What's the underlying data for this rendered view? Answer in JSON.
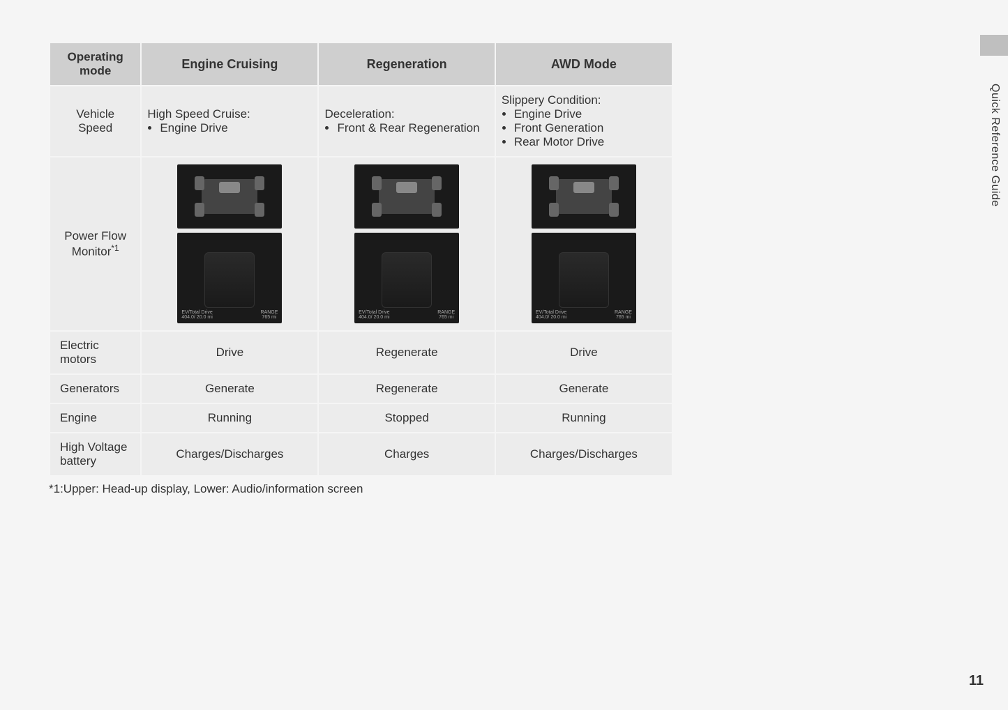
{
  "side_label": "Quick Reference Guide",
  "page_number": "11",
  "footnote": "*1:Upper: Head-up display, Lower: Audio/information screen",
  "headers": {
    "operating_mode": "Operating\nmode",
    "col1": "Engine Cruising",
    "col2": "Regeneration",
    "col3": "AWD Mode"
  },
  "rows": {
    "vehicle_speed": {
      "label": "Vehicle\nSpeed",
      "col1_title": "High Speed Cruise:",
      "col1_items": [
        "Engine Drive"
      ],
      "col2_title": "Deceleration:",
      "col2_items": [
        "Front & Rear Regeneration"
      ],
      "col3_title": "Slippery Condition:",
      "col3_items": [
        "Engine Drive",
        "Front Generation",
        "Rear Motor Drive"
      ]
    },
    "power_flow": {
      "label": "Power Flow\nMonitor",
      "label_sup": "*1",
      "readout_left_label": "EV/Total Drive",
      "readout_left_value": "404.0/ 20.0 mi",
      "readout_right_label": "RANGE",
      "readout_right_value": "765 mi"
    },
    "electric_motors": {
      "label": "Electric motors",
      "col1": "Drive",
      "col2": "Regenerate",
      "col3": "Drive"
    },
    "generators": {
      "label": "Generators",
      "col1": "Generate",
      "col2": "Regenerate",
      "col3": "Generate"
    },
    "engine": {
      "label": "Engine",
      "col1": "Running",
      "col2": "Stopped",
      "col3": "Running"
    },
    "battery": {
      "label": "High Voltage\nbattery",
      "col1": "Charges/Discharges",
      "col2": "Charges",
      "col3": "Charges/Discharges"
    }
  }
}
